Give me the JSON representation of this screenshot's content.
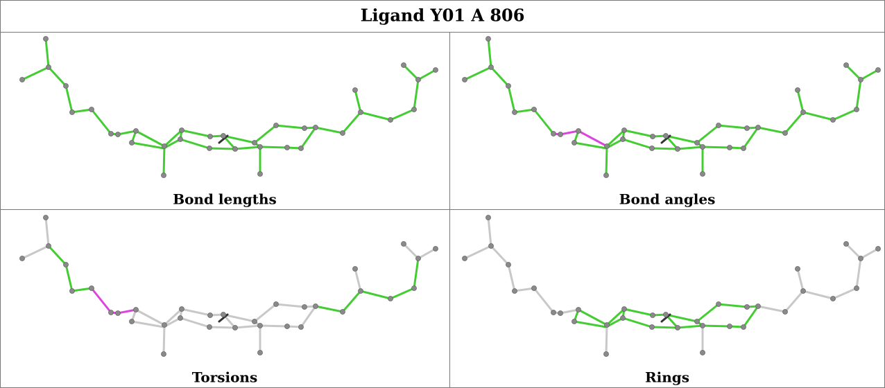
{
  "title": "Ligand Y01 A 806",
  "panels": [
    "Bond lengths",
    "Bond angles",
    "Torsions",
    "Rings"
  ]
}
